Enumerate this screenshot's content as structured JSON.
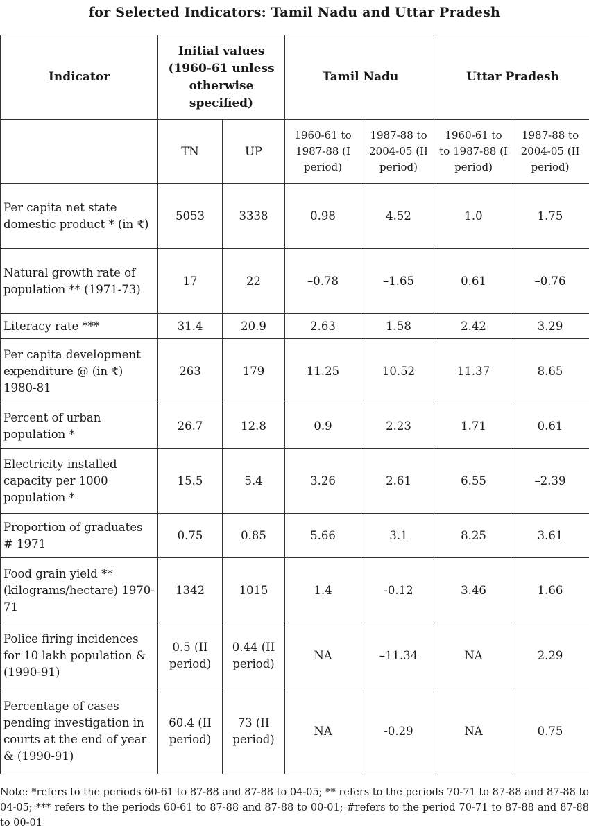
{
  "title": "for Selected Indicators: Tamil Nadu and Uttar Pradesh",
  "header": {
    "indicator": "Indicator",
    "initial_values": "Initial values (1960-61 unless otherwise specified)",
    "tamil_nadu": "Tamil Nadu",
    "uttar_pradesh": "Uttar Pradesh",
    "tn": "TN",
    "up": "UP",
    "tn_period1": "1960-61 to 1987-88 (I period)",
    "tn_period2": "1987-88 to 2004-05 (II period)",
    "up_period1": "1960-61 to to 1987-88 (I period)",
    "up_period2": "1987-88 to 2004-05 (II period)"
  },
  "rows": [
    {
      "indicator": "Per capita net state domestic product * (in ₹)",
      "tn": "5053",
      "up": "3338",
      "tn1": "0.98",
      "tn2": "4.52",
      "up1": "1.0",
      "up2": "1.75"
    },
    {
      "indicator": "Natural growth rate of population ** (1971-73)",
      "tn": "17",
      "up": "22",
      "tn1": "–0.78",
      "tn2": "–1.65",
      "up1": "0.61",
      "up2": "–0.76"
    },
    {
      "indicator": "Literacy rate ***",
      "tn": "31.4",
      "up": "20.9",
      "tn1": "2.63",
      "tn2": "1.58",
      "up1": "2.42",
      "up2": "3.29"
    },
    {
      "indicator": "Per capita development expenditure @ (in ₹) 1980-81",
      "tn": "263",
      "up": "179",
      "tn1": "11.25",
      "tn2": "10.52",
      "up1": "11.37",
      "up2": "8.65"
    },
    {
      "indicator": "Percent of urban population *",
      "tn": "26.7",
      "up": "12.8",
      "tn1": "0.9",
      "tn2": "2.23",
      "up1": "1.71",
      "up2": "0.61"
    },
    {
      "indicator": "Electricity installed capacity per 1000 population *",
      "tn": "15.5",
      "up": "5.4",
      "tn1": "3.26",
      "tn2": "2.61",
      "up1": "6.55",
      "up2": "–2.39"
    },
    {
      "indicator": "Proportion of graduates # 1971",
      "tn": "0.75",
      "up": "0.85",
      "tn1": "5.66",
      "tn2": "3.1",
      "up1": "8.25",
      "up2": "3.61"
    },
    {
      "indicator": "Food grain yield ** (kilograms/hectare) 1970-71",
      "tn": "1342",
      "up": "1015",
      "tn1": "1.4",
      "tn2": "-0.12",
      "up1": "3.46",
      "up2": "1.66"
    },
    {
      "indicator": "Police firing incidences for 10 lakh population & (1990-91)",
      "tn": "0.5 (II period)",
      "up": "0.44 (II period)",
      "tn1": "NA",
      "tn2": "–11.34",
      "up1": "NA",
      "up2": "2.29"
    },
    {
      "indicator": "Percentage of cases pending investigation in courts at the end of year & (1990-91)",
      "tn": "60.4 (II period)",
      "up": "73 (II period)",
      "tn1": "NA",
      "tn2": "-0.29",
      "up1": "NA",
      "up2": "0.75"
    }
  ],
  "note": "Note: *refers to the periods 60-61 to 87-88 and 87-88 to 04-05; ** refers to the periods 70-71 to 87-88 and 87-88 to 04-05; *** refers to the periods 60-61 to 87-88 and 87-88 to 00-01; #refers to the period 70-71 to 87-88 and 87-88 to 00-01"
}
